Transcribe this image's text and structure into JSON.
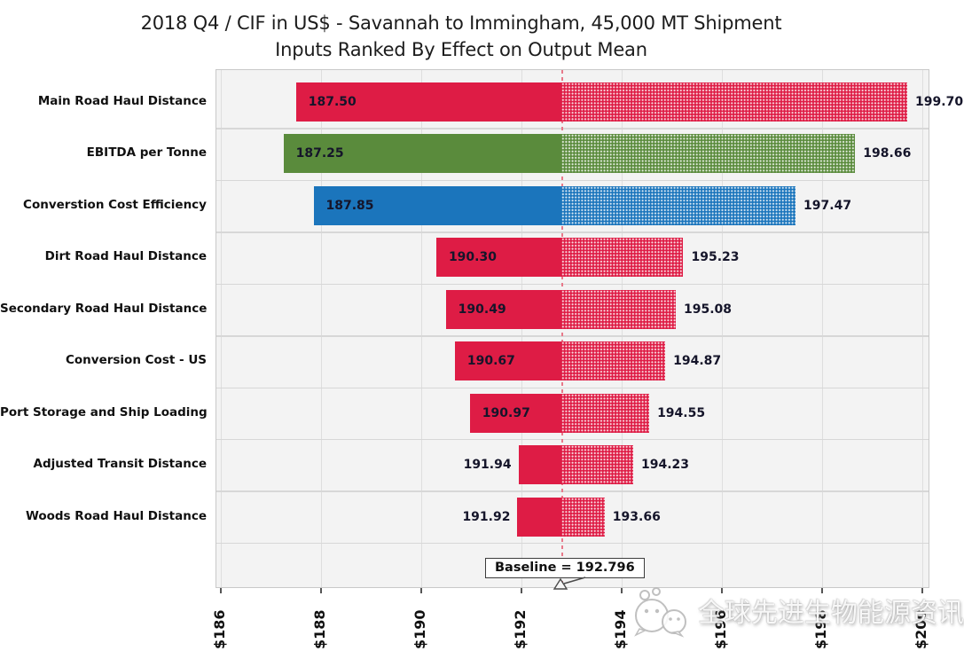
{
  "title": {
    "line1": "2018 Q4 / CIF in US$ - Savannah to Immingham, 45,000 MT Shipment",
    "line2": "Inputs Ranked By Effect on Output Mean"
  },
  "chart_data": {
    "type": "bar",
    "subtype": "tornado",
    "orientation": "horizontal",
    "title": "2018 Q4 / CIF in US$ - Savannah to Immingham, 45,000 MT Shipment",
    "subtitle": "Inputs Ranked By Effect on Output Mean",
    "x_min": 186,
    "x_max": 200,
    "x_tick_step": 2,
    "x_tick_labels": [
      "$186",
      "$188",
      "$190",
      "$192",
      "$194",
      "$196",
      "$198",
      "$200"
    ],
    "grid": true,
    "baseline": {
      "value": 192.796,
      "label": "Baseline = 192.796"
    },
    "bars": [
      {
        "category": "Main Road Haul Distance",
        "low": 187.5,
        "high": 199.7,
        "color": "#de1c45"
      },
      {
        "category": "EBITDA per Tonne",
        "low": 187.25,
        "high": 198.66,
        "color": "#5a8b3c"
      },
      {
        "category": "Converstion Cost Efficiency",
        "low": 187.85,
        "high": 197.47,
        "color": "#1b75bc"
      },
      {
        "category": "Dirt Road Haul Distance",
        "low": 190.3,
        "high": 195.23,
        "color": "#de1c45"
      },
      {
        "category": "Secondary Road Haul Distance",
        "low": 190.49,
        "high": 195.08,
        "color": "#de1c45"
      },
      {
        "category": "Conversion Cost - US",
        "low": 190.67,
        "high": 194.87,
        "color": "#de1c45"
      },
      {
        "category": "Port Storage and Ship Loading",
        "low": 190.97,
        "high": 194.55,
        "color": "#de1c45"
      },
      {
        "category": "Adjusted Transit Distance",
        "low": 191.94,
        "high": 194.23,
        "color": "#de1c45"
      },
      {
        "category": "Woods Road Haul Distance",
        "low": 191.92,
        "high": 193.66,
        "color": "#de1c45"
      }
    ],
    "legend": null,
    "plot_background": "#f3f3f3",
    "bar_pattern_right_of_baseline": "white-dot-halftone"
  },
  "watermark": {
    "text": "全球先进生物能源资讯",
    "logo": "wechat-logo"
  }
}
